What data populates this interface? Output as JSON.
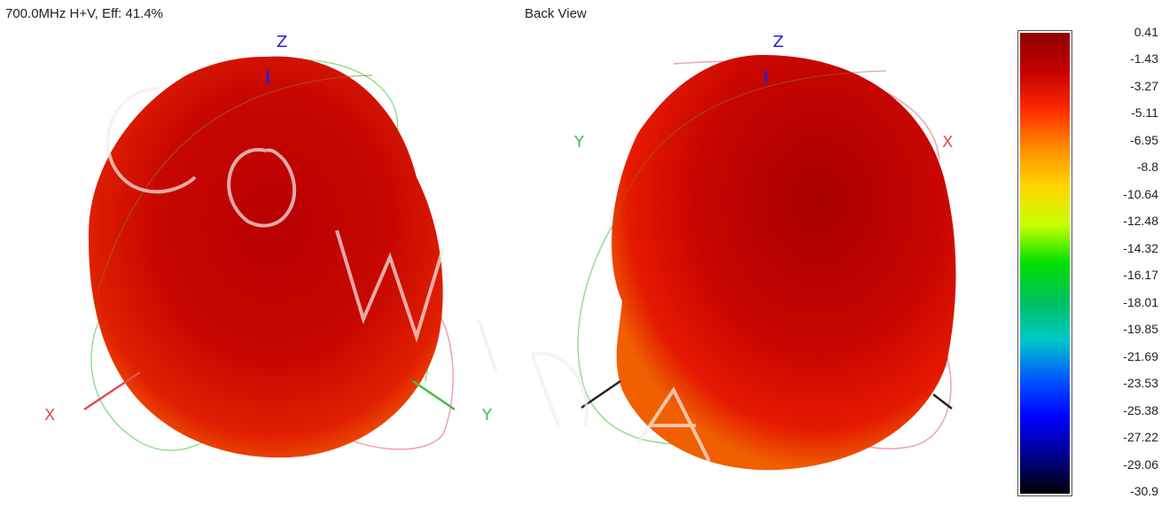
{
  "header": {
    "left_title": "700.0MHz H+V, Eff: 41.4%",
    "right_title": "Back View"
  },
  "left_view": {
    "axes": {
      "z": "Z",
      "x": "X",
      "y": "Y"
    }
  },
  "right_view": {
    "axes": {
      "z": "Z",
      "y": "Y",
      "x": "X"
    }
  },
  "colorbar": {
    "ticks": [
      "0.41",
      "-1.43",
      "-3.27",
      "-5.11",
      "-6.95",
      "-8.8",
      "-10.64",
      "-12.48",
      "-14.32",
      "-16.17",
      "-18.01",
      "-19.85",
      "-21.69",
      "-23.53",
      "-25.38",
      "-27.22",
      "-29.06",
      "-30.9"
    ],
    "colors": [
      "#8e0000",
      "#c40000",
      "#ff2a00",
      "#ff8c00",
      "#ffd600",
      "#c8ff00",
      "#00e000",
      "#00c060",
      "#00c8c8",
      "#0058ff",
      "#0000ff",
      "#000090",
      "#000000"
    ]
  },
  "colors": {
    "axis_z": "#2222cc",
    "axis_x": "#e05050",
    "axis_y": "#40c040",
    "trace_green": "#90e090",
    "trace_pink": "#f0a0b0"
  }
}
